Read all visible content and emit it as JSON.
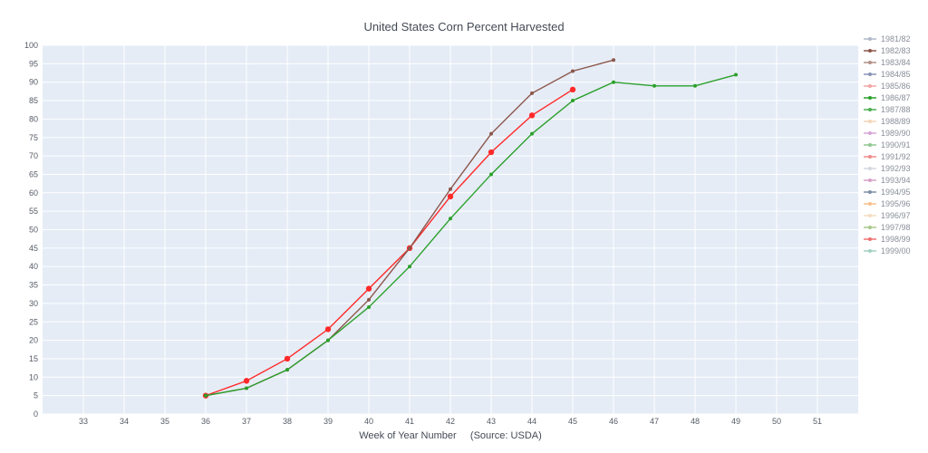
{
  "chart_data": {
    "type": "line",
    "title": "United States Corn Percent Harvested",
    "xlabel": "Week of Year Number     (Source: USDA)",
    "ylabel": "",
    "xlim": [
      32,
      52
    ],
    "ylim": [
      0,
      100
    ],
    "x_ticks": [
      33,
      34,
      35,
      36,
      37,
      38,
      39,
      40,
      41,
      42,
      43,
      44,
      45,
      46,
      47,
      48,
      49,
      50,
      51
    ],
    "y_ticks": [
      0,
      5,
      10,
      15,
      20,
      25,
      30,
      35,
      40,
      45,
      50,
      55,
      60,
      65,
      70,
      75,
      80,
      85,
      90,
      95,
      100
    ],
    "grid": true,
    "legend_position": "right",
    "legend": [
      {
        "name": "1981/82",
        "color": "#b0b8c8"
      },
      {
        "name": "1982/83",
        "color": "#8c564b"
      },
      {
        "name": "1983/84",
        "color": "#b39086"
      },
      {
        "name": "1984/85",
        "color": "#8a93b5"
      },
      {
        "name": "1985/86",
        "color": "#f3a6a6"
      },
      {
        "name": "1986/87",
        "color": "#2ca02c"
      },
      {
        "name": "1987/88",
        "color": "#4caf50"
      },
      {
        "name": "1988/89",
        "color": "#f5d6b8"
      },
      {
        "name": "1989/90",
        "color": "#d7a6d6"
      },
      {
        "name": "1990/91",
        "color": "#8fc78f"
      },
      {
        "name": "1991/92",
        "color": "#f08a8a"
      },
      {
        "name": "1992/93",
        "color": "#d5d8e0"
      },
      {
        "name": "1993/94",
        "color": "#d6a0c8"
      },
      {
        "name": "1994/95",
        "color": "#7f8fa6"
      },
      {
        "name": "1995/96",
        "color": "#f7c08a"
      },
      {
        "name": "1996/97",
        "color": "#f5dcc0"
      },
      {
        "name": "1997/98",
        "color": "#a8c88a"
      },
      {
        "name": "1998/99",
        "color": "#f07070"
      },
      {
        "name": "1999/00",
        "color": "#9fd0c0"
      }
    ],
    "series": [
      {
        "x": [
          36,
          37,
          38,
          39,
          40,
          41,
          42,
          43,
          44,
          45
        ],
        "y": [
          5,
          9,
          15,
          23,
          34,
          45,
          59,
          71,
          81,
          88
        ],
        "color": "#ff2a2a",
        "marker_size": 3.2
      },
      {
        "x": [
          36,
          37,
          38,
          39,
          40,
          41,
          42,
          43,
          44,
          45,
          46
        ],
        "y": [
          5,
          7,
          12,
          20,
          31,
          45,
          61,
          76,
          87,
          93,
          96
        ],
        "color": "#8c564b",
        "marker_size": 2
      },
      {
        "x": [
          36,
          37,
          38,
          39,
          40,
          41,
          42,
          43,
          44,
          45,
          46,
          47,
          48,
          49
        ],
        "y": [
          5,
          7,
          12,
          20,
          29,
          40,
          53,
          65,
          76,
          85,
          90,
          89,
          89,
          92
        ],
        "color": "#2ca02c",
        "marker_size": 2
      }
    ]
  }
}
